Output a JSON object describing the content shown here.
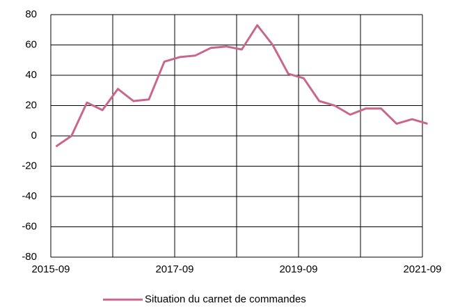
{
  "chart_data": {
    "type": "line",
    "x": [
      "2015-10",
      "2016-01",
      "2016-04",
      "2016-07",
      "2016-10",
      "2017-01",
      "2017-04",
      "2017-07",
      "2017-10",
      "2018-01",
      "2018-04",
      "2018-07",
      "2018-10",
      "2019-01",
      "2019-04",
      "2019-07",
      "2019-10",
      "2020-01",
      "2020-04",
      "2020-07",
      "2020-10",
      "2021-01",
      "2021-04",
      "2021-07",
      "2021-10"
    ],
    "series": [
      {
        "name": "Situation du carnet de commandes",
        "color": "#c8678e",
        "values": [
          -7,
          0,
          22,
          17,
          31,
          23,
          24,
          49,
          52,
          53,
          58,
          59,
          57,
          73,
          60,
          41,
          38,
          23,
          20,
          14,
          18,
          18,
          8,
          11,
          8
        ]
      }
    ],
    "xlim": [
      "2015-09",
      "2021-09"
    ],
    "xticks": [
      "2015-09",
      {
        "value": "2016-09",
        "label": null
      },
      "2017-09",
      {
        "value": "2018-09",
        "label": null
      },
      "2019-09",
      {
        "value": "2020-09",
        "label": null
      },
      "2021-09"
    ],
    "ylim": [
      -80,
      80
    ],
    "yticks": [
      -80,
      -60,
      -40,
      -20,
      0,
      20,
      40,
      60,
      80
    ],
    "grid": true,
    "legend": "bottom"
  }
}
